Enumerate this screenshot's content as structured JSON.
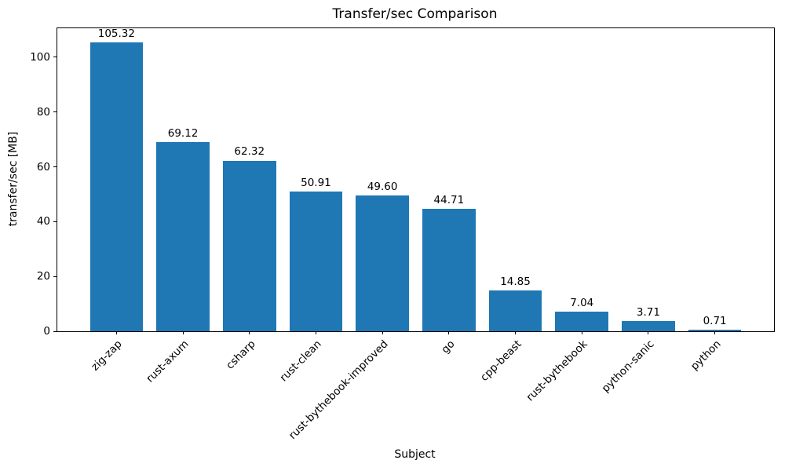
{
  "chart_data": {
    "type": "bar",
    "title": "Transfer/sec Comparison",
    "xlabel": "Subject",
    "ylabel": "transfer/sec [MB]",
    "categories": [
      "zig-zap",
      "rust-axum",
      "csharp",
      "rust-clean",
      "rust-bythebook-improved",
      "go",
      "cpp-beast",
      "rust-bythebook",
      "python-sanic",
      "python"
    ],
    "values": [
      105.32,
      69.12,
      62.32,
      50.91,
      49.6,
      44.71,
      14.85,
      7.04,
      3.71,
      0.71
    ],
    "value_labels": [
      "105.32",
      "69.12",
      "62.32",
      "50.91",
      "49.60",
      "44.71",
      "14.85",
      "7.04",
      "3.71",
      "0.71"
    ],
    "yticks": [
      "0",
      "20",
      "40",
      "60",
      "80",
      "100"
    ],
    "ytick_values": [
      0,
      20,
      40,
      60,
      80,
      100
    ],
    "ylim": [
      0,
      110.6
    ],
    "bar_color": "#1f77b4",
    "axis_color": "#000000",
    "grid": false,
    "legend": null,
    "x_tick_rotation": 45,
    "bar_width_ratio": 0.8
  }
}
